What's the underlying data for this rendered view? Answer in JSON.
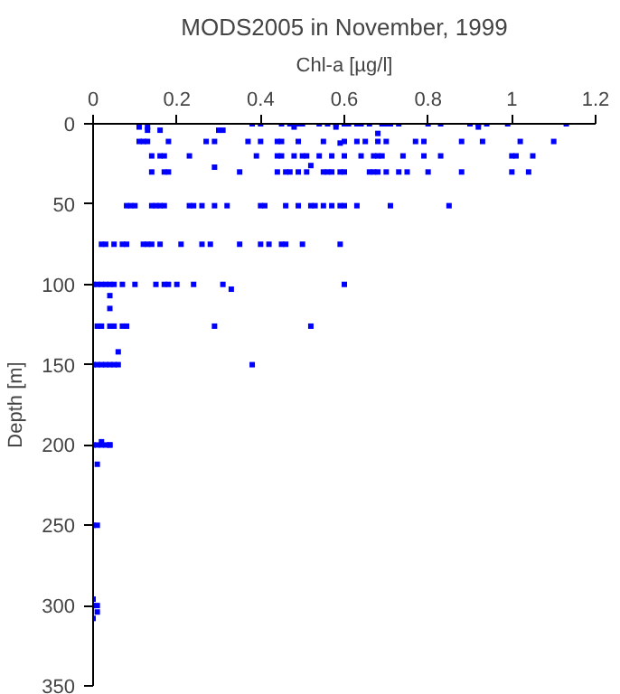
{
  "chart_data": {
    "type": "scatter",
    "title": "MODS2005 in November, 1999",
    "xlabel": "Chl-a [µg/l]",
    "ylabel": "Depth [m]",
    "xlim": [
      0,
      1.2
    ],
    "xticks": [
      0,
      0.2,
      0.4,
      0.6,
      0.8,
      1,
      1.2
    ],
    "ylim": [
      350,
      0
    ],
    "yticks": [
      0,
      50,
      100,
      150,
      200,
      250,
      300,
      350
    ],
    "grid": false,
    "marker": "square",
    "series": [
      {
        "color": "#0000ff",
        "x": [
          0.38,
          0.4,
          0.45,
          0.47,
          0.49,
          0.5,
          0.54,
          0.56,
          0.58,
          0.6,
          0.61,
          0.63,
          0.64,
          0.66,
          0.69,
          0.7,
          0.71,
          0.73,
          0.8,
          0.83,
          0.9,
          0.92,
          0.94,
          0.99,
          1.13,
          0.11,
          0.13,
          0.48,
          0.58,
          0.92,
          0.13,
          0.16,
          0.3,
          0.31,
          0.68,
          0.11,
          0.12,
          0.13,
          0.18,
          0.27,
          0.29,
          0.37,
          0.4,
          0.44,
          0.45,
          0.49,
          0.55,
          0.6,
          0.63,
          0.65,
          0.68,
          0.7,
          0.77,
          0.79,
          0.88,
          0.93,
          1.02,
          1.1,
          0.59,
          0.14,
          0.16,
          0.17,
          0.23,
          0.39,
          0.44,
          0.45,
          0.48,
          0.5,
          0.51,
          0.54,
          0.57,
          0.6,
          0.64,
          0.67,
          0.68,
          0.69,
          0.74,
          0.79,
          0.83,
          1.0,
          1.01,
          1.05,
          0.52,
          0.29,
          0.14,
          0.17,
          0.18,
          0.35,
          0.44,
          0.46,
          0.47,
          0.49,
          0.51,
          0.55,
          0.56,
          0.57,
          0.59,
          0.6,
          0.66,
          0.67,
          0.68,
          0.7,
          0.73,
          0.75,
          0.8,
          0.88,
          1.0,
          1.04,
          0.08,
          0.09,
          0.1,
          0.14,
          0.15,
          0.16,
          0.17,
          0.23,
          0.24,
          0.26,
          0.29,
          0.32,
          0.4,
          0.41,
          0.46,
          0.49,
          0.52,
          0.53,
          0.55,
          0.57,
          0.59,
          0.6,
          0.63,
          0.71,
          0.85,
          0.02,
          0.03,
          0.05,
          0.07,
          0.08,
          0.12,
          0.13,
          0.14,
          0.16,
          0.21,
          0.26,
          0.28,
          0.35,
          0.4,
          0.42,
          0.45,
          0.46,
          0.5,
          0.59,
          0.0,
          0.01,
          0.02,
          0.03,
          0.04,
          0.05,
          0.07,
          0.1,
          0.15,
          0.17,
          0.18,
          0.2,
          0.24,
          0.31,
          0.6,
          0.33,
          0.04,
          0.04,
          0.01,
          0.02,
          0.04,
          0.05,
          0.07,
          0.08,
          0.29,
          0.52,
          0.06,
          0.0,
          0.01,
          0.02,
          0.03,
          0.04,
          0.05,
          0.06,
          0.38,
          0.0,
          0.01,
          0.02,
          0.03,
          0.04,
          0.02,
          0.04,
          0.01,
          0.0,
          0.01,
          0.0,
          0.01,
          0.0,
          0.01,
          0.0
        ],
        "values": [
          0,
          0,
          0,
          0,
          0,
          0,
          0,
          0,
          0,
          0,
          0,
          0,
          0,
          0,
          0,
          0,
          0,
          0,
          0,
          0,
          0,
          0,
          0,
          0,
          0,
          2,
          2,
          2,
          2,
          2,
          4,
          4,
          4,
          4,
          6,
          11,
          11,
          11,
          11,
          11,
          11,
          11,
          11,
          11,
          11,
          11,
          11,
          11,
          11,
          11,
          11,
          11,
          11,
          11,
          11,
          11,
          11,
          11,
          12,
          20,
          20,
          20,
          20,
          20,
          20,
          20,
          20,
          20,
          20,
          20,
          20,
          20,
          20,
          20,
          20,
          20,
          20,
          20,
          20,
          20,
          20,
          20,
          26,
          27,
          30,
          30,
          30,
          30,
          30,
          30,
          30,
          30,
          30,
          30,
          30,
          30,
          30,
          30,
          30,
          30,
          30,
          30,
          30,
          30,
          30,
          30,
          30,
          30,
          51,
          51,
          51,
          51,
          51,
          51,
          51,
          51,
          51,
          51,
          51,
          51,
          51,
          51,
          51,
          51,
          51,
          51,
          51,
          51,
          51,
          51,
          51,
          51,
          51,
          75,
          75,
          75,
          75,
          75,
          75,
          75,
          75,
          75,
          75,
          75,
          75,
          75,
          75,
          75,
          75,
          75,
          75,
          75,
          100,
          100,
          100,
          100,
          100,
          100,
          100,
          100,
          100,
          100,
          100,
          100,
          100,
          100,
          100,
          103,
          107,
          115,
          126,
          126,
          126,
          126,
          126,
          126,
          126,
          126,
          142,
          150,
          150,
          150,
          150,
          150,
          150,
          150,
          150,
          200,
          200,
          200,
          200,
          200,
          198,
          200,
          212,
          250,
          250,
          300,
          300,
          296,
          304,
          308
        ]
      }
    ]
  }
}
